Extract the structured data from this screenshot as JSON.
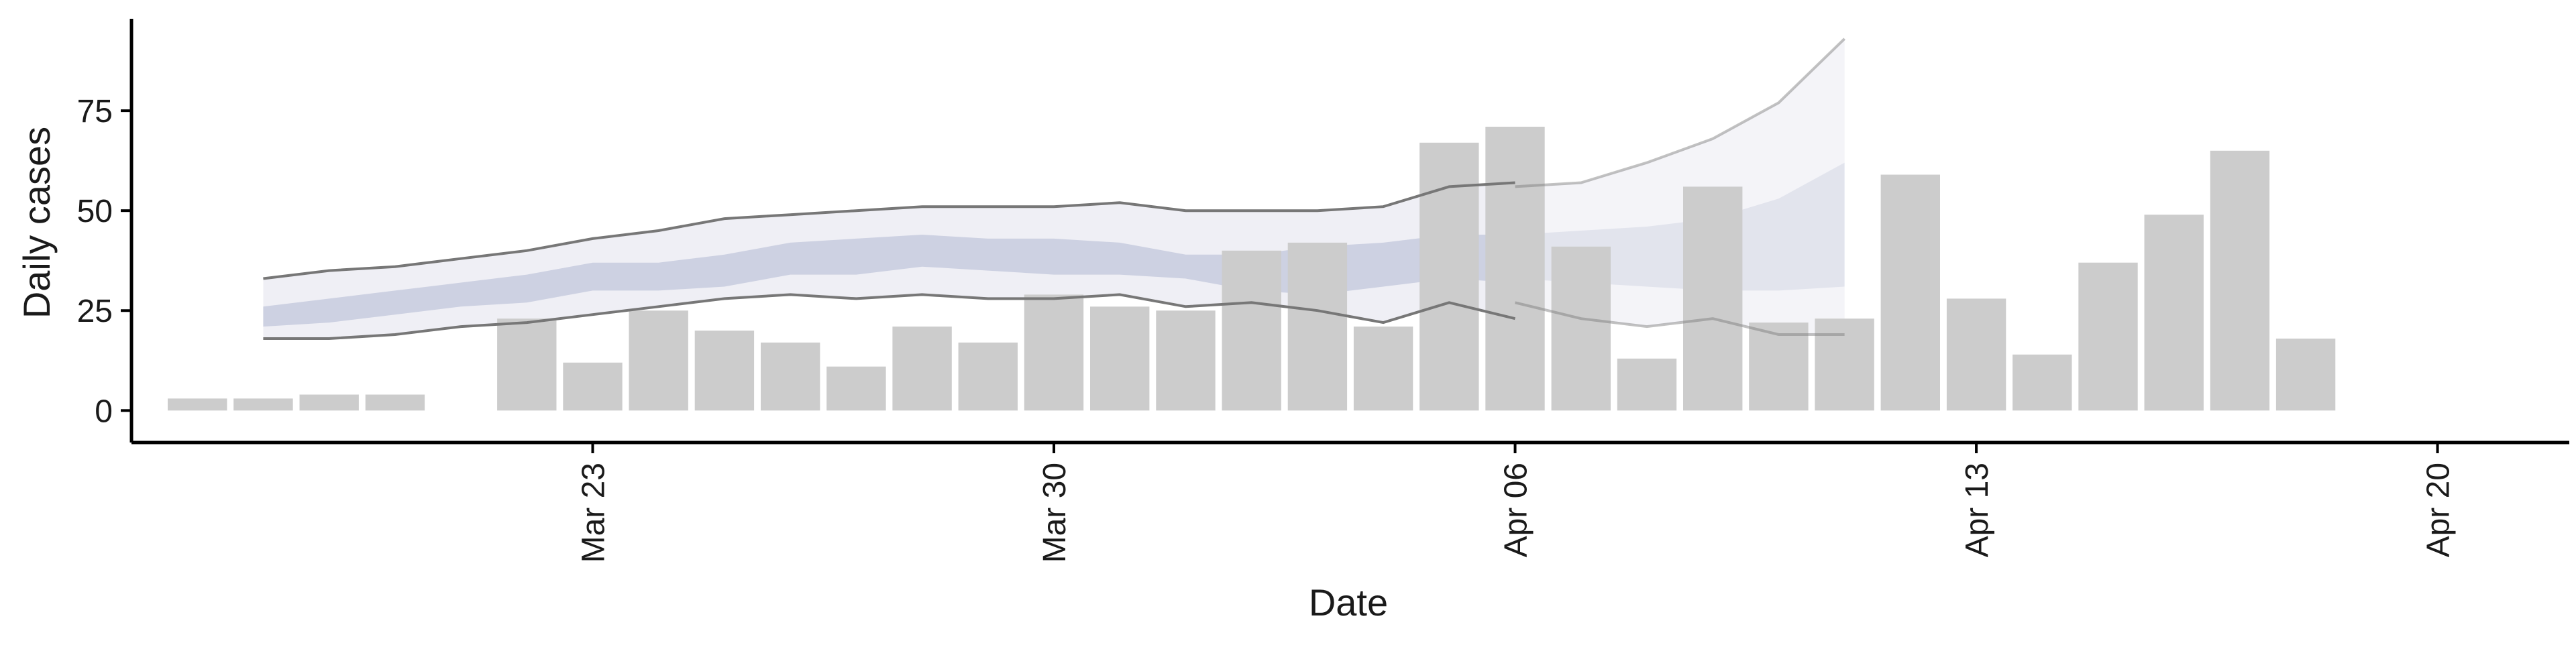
{
  "chart_data": {
    "type": "bar",
    "xlabel": "Date",
    "ylabel": "Daily cases",
    "ylim": [
      -8,
      98
    ],
    "y_ticks": [
      0,
      25,
      50,
      75
    ],
    "x_ticks": [
      "Mar 23",
      "Mar 30",
      "Apr 06",
      "Apr 13",
      "Apr 20"
    ],
    "x_tick_dates": [
      "2020-03-23",
      "2020-03-30",
      "2020-04-06",
      "2020-04-13",
      "2020-04-20"
    ],
    "x_range": [
      "2020-03-16",
      "2020-04-22"
    ],
    "grid": false,
    "legend": "none",
    "colors": {
      "bars": "#cccccc",
      "band_outer": "#e9eaf2",
      "band_inner": "#bfc5da",
      "bound_lines": "#777777",
      "axis": "#000000"
    },
    "bars": {
      "name": "",
      "x": [
        "2020-03-17",
        "2020-03-18",
        "2020-03-19",
        "2020-03-20",
        "2020-03-21",
        "2020-03-22",
        "2020-03-23",
        "2020-03-24",
        "2020-03-25",
        "2020-03-26",
        "2020-03-27",
        "2020-03-28",
        "2020-03-29",
        "2020-03-30",
        "2020-03-31",
        "2020-04-01",
        "2020-04-02",
        "2020-04-03",
        "2020-04-04",
        "2020-04-05",
        "2020-04-06",
        "2020-04-07",
        "2020-04-08",
        "2020-04-09",
        "2020-04-10",
        "2020-04-11",
        "2020-04-12",
        "2020-04-13",
        "2020-04-14",
        "2020-04-15",
        "2020-04-16",
        "2020-04-17",
        "2020-04-18",
        "2020-04-19",
        "2020-04-20"
      ],
      "values": [
        3,
        3,
        4,
        4,
        0,
        23,
        12,
        25,
        20,
        17,
        11,
        21,
        17,
        29,
        26,
        25,
        40,
        42,
        21,
        67,
        71,
        41,
        13,
        56,
        22,
        23,
        59,
        28,
        14,
        37,
        49,
        65,
        18,
        0,
        0
      ]
    },
    "nowcast": {
      "x": [
        "2020-03-18",
        "2020-03-19",
        "2020-03-20",
        "2020-03-21",
        "2020-03-22",
        "2020-03-23",
        "2020-03-24",
        "2020-03-25",
        "2020-03-26",
        "2020-03-27",
        "2020-03-28",
        "2020-03-29",
        "2020-03-30",
        "2020-03-31",
        "2020-04-01",
        "2020-04-02",
        "2020-04-03",
        "2020-04-04",
        "2020-04-05",
        "2020-04-06"
      ],
      "upper_90": [
        33,
        35,
        36,
        38,
        40,
        43,
        45,
        48,
        49,
        50,
        51,
        51,
        51,
        52,
        50,
        50,
        50,
        51,
        56,
        57
      ],
      "upper_50": [
        26,
        28,
        30,
        32,
        34,
        37,
        37,
        39,
        42,
        43,
        44,
        43,
        43,
        42,
        39,
        39,
        41,
        42,
        44,
        44
      ],
      "lower_50": [
        21,
        22,
        24,
        26,
        27,
        30,
        30,
        31,
        34,
        34,
        36,
        35,
        34,
        34,
        33,
        30,
        29,
        31,
        33,
        32
      ],
      "lower_90": [
        18,
        18,
        19,
        21,
        22,
        24,
        26,
        28,
        29,
        28,
        29,
        28,
        28,
        29,
        26,
        27,
        25,
        22,
        27,
        23
      ]
    },
    "forecast": {
      "x": [
        "2020-04-06",
        "2020-04-07",
        "2020-04-08",
        "2020-04-09",
        "2020-04-10",
        "2020-04-11"
      ],
      "upper_90": [
        56,
        57,
        62,
        68,
        77,
        93
      ],
      "upper_50": [
        44,
        45,
        46,
        48,
        53,
        62
      ],
      "lower_50": [
        33,
        32,
        31,
        30,
        30,
        31
      ],
      "lower_90": [
        27,
        23,
        21,
        23,
        19,
        19
      ]
    }
  }
}
